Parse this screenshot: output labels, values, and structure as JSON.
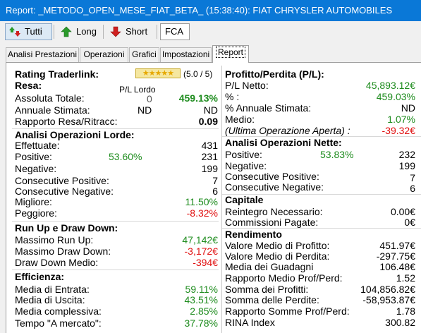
{
  "window": {
    "title": "Report: _METODO_OPEN_MESE_FIAT_BETA_ (15:38:40): FIAT CHRYSLER AUTOMOBILES"
  },
  "toolbar": {
    "all_label": "Tutti",
    "long_label": "Long",
    "short_label": "Short",
    "symbol": "FCA"
  },
  "tabs": [
    "Analisi Prestazioni",
    "Operazioni",
    "Grafici",
    "Impostazioni",
    "Report"
  ],
  "left": {
    "rating": {
      "label": "Rating Traderlink:",
      "stars": "★★★★★",
      "score": "(5.0 / 5)"
    },
    "resa": {
      "title": "Resa:",
      "pl_lordo": "P/L Lordo",
      "assoluta_label": "Assoluta Totale:",
      "assoluta_mid": "0",
      "assoluta_val": "459.13%",
      "annuale_label": "Annuale Stimata:",
      "annuale_mid": "ND",
      "annuale_val": "ND",
      "rapporto_label": "Rapporto Resa/Ritracc:",
      "rapporto_val": "0.09"
    },
    "lorde": {
      "title": "Analisi Operazioni Lorde:",
      "effettuate_label": "Effettuate:",
      "effettuate_val": "431",
      "positive_label": "Positive:",
      "positive_pct": "53.60%",
      "positive_val": "231",
      "negative_label": "Negative:",
      "negative_val": "199",
      "cons_pos_label": "Consecutive Positive:",
      "cons_pos_val": "7",
      "cons_neg_label": "Consecutive Negative:",
      "cons_neg_val": "6",
      "migliore_label": "Migliore:",
      "migliore_val": "11.50%",
      "peggiore_label": "Peggiore:",
      "peggiore_val": "-8.32%"
    },
    "runup": {
      "title": "Run Up e Draw Down:",
      "max_run_label": "Massimo Run Up:",
      "max_run_val": "47,142€",
      "max_dd_label": "Massimo Draw Down:",
      "max_dd_val": "-3,172€",
      "dd_medio_label": "Draw Down Medio:",
      "dd_medio_val": "-394€"
    },
    "efficienza": {
      "title": "Efficienza:",
      "entrata_label": "Media di Entrata:",
      "entrata_val": "59.11%",
      "uscita_label": "Media di Uscita:",
      "uscita_val": "43.51%",
      "complessiva_label": "Media complessiva:",
      "complessiva_val": "2.85%",
      "tempo_label": "Tempo \"A mercato\":",
      "tempo_val": "37.78%"
    }
  },
  "right": {
    "pl": {
      "title": "Profitto/Perdita (P/L):",
      "netto_label": "P/L Netto:",
      "netto_val": "45,893.12€",
      "pct_label": "% :",
      "pct_val": "459.03%",
      "annuale_label": "% Annuale Stimata:",
      "annuale_val": "ND",
      "medio_label": "Medio:",
      "medio_val": "1.07%",
      "ultima_label": "(Ultima Operazione Aperta) :",
      "ultima_val": "-39.32€"
    },
    "nette": {
      "title": "Analisi Operazioni Nette:",
      "positive_label": "Positive:",
      "positive_pct": "53.83%",
      "positive_val": "232",
      "negative_label": "Negative:",
      "negative_val": "199",
      "cons_pos_label": "Consecutive Positive:",
      "cons_pos_val": "7",
      "cons_neg_label": "Consecutive Negative:",
      "cons_neg_val": "6"
    },
    "capitale": {
      "title": "Capitale",
      "reintegro_label": "Reintegro Necessario:",
      "reintegro_val": "0.00€",
      "commissioni_label": "Commissioni Pagate:",
      "commissioni_val": "0€"
    },
    "rendimento": {
      "title": "Rendimento",
      "v_profitto_label": "Valore Medio di Profitto:",
      "v_profitto_val": "451.97€",
      "v_perdita_label": "Valore Medio di Perdita:",
      "v_perdita_val": "-297.75€",
      "guadagni_label": "Media dei Guadagni",
      "guadagni_val": "106.48€",
      "rapporto_label": "Rapporto Medio Prof/Perd:",
      "rapporto_val": "1.52",
      "somma_prof_label": "Somma dei Profitti:",
      "somma_prof_val": "104,856.82€",
      "somma_perd_label": "Somma delle Perdite:",
      "somma_perd_val": "-58,953.87€",
      "rapporto_somme_label": "Rapporto Somme Prof/Perd:",
      "rapporto_somme_val": "1.78",
      "rina_label": "RINA Index",
      "rina_val": "300.82"
    }
  },
  "colors": {
    "titlebar": "#0a78d7",
    "positive": "#1e8c1e",
    "negative": "#e01010"
  }
}
